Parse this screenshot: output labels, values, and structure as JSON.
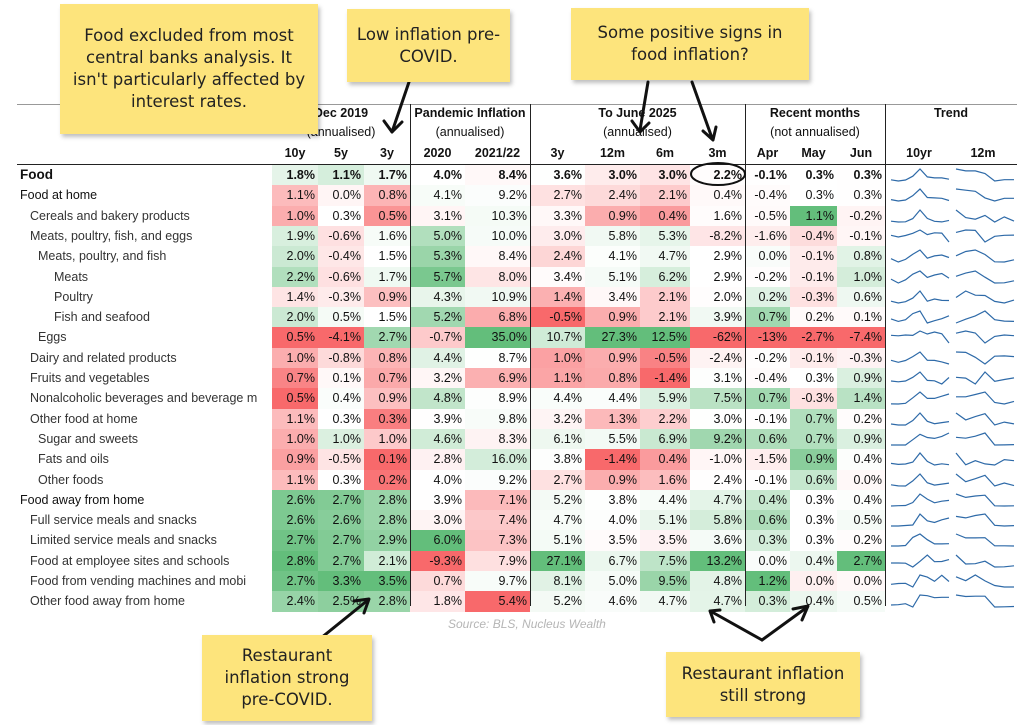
{
  "notes": {
    "food_excluded": "Food excluded from most central banks analysis. It isn't particularly affected by interest rates.",
    "low_inflation": "Low inflation pre-COVID.",
    "positive_signs": "Some positive signs in food inflation?",
    "restaurant_pre": "Restaurant inflation strong pre-COVID.",
    "restaurant_still": "Restaurant inflation still strong"
  },
  "source": "Source: BLS, Nucleus Wealth",
  "colors": {
    "red": "#f8696b",
    "white": "#ffffff",
    "green": "#63be7b",
    "note": "#fde47c",
    "sparkline": "#2e6aa8"
  },
  "chart_data": {
    "type": "table",
    "groups": [
      {
        "label": "Dec 2019",
        "sublabel": "(annualised)",
        "columns": [
          "10y",
          "5y",
          "3y"
        ]
      },
      {
        "label": "Pandemic Inflation",
        "sublabel": "(annualised)",
        "columns": [
          "2020",
          "2021/22"
        ]
      },
      {
        "label": "To June 2025",
        "sublabel": "(annualised)",
        "columns": [
          "3y",
          "12m",
          "6m",
          "3m"
        ]
      },
      {
        "label": "Recent months",
        "sublabel": "(not annualised)",
        "columns": [
          "Apr",
          "May",
          "Jun"
        ]
      },
      {
        "label": "Trend",
        "sublabel": "",
        "columns": [
          "10yr",
          "12m"
        ]
      }
    ],
    "rows": [
      {
        "label": "Food",
        "level": 0,
        "bold": true,
        "values": [
          1.8,
          1.1,
          1.7,
          4.0,
          8.4,
          3.6,
          3.0,
          3.0,
          2.2,
          -0.1,
          0.3,
          0.3
        ]
      },
      {
        "label": "Food at home",
        "level": 0,
        "values": [
          1.1,
          0.0,
          0.8,
          4.1,
          9.2,
          2.7,
          2.4,
          2.1,
          0.4,
          -0.4,
          0.3,
          0.3
        ]
      },
      {
        "label": "Cereals and bakery products",
        "level": 1,
        "values": [
          1.0,
          0.3,
          0.5,
          3.1,
          10.3,
          3.3,
          0.9,
          0.4,
          1.6,
          -0.5,
          1.1,
          -0.2
        ]
      },
      {
        "label": "Meats, poultry, fish, and eggs",
        "level": 1,
        "values": [
          1.9,
          -0.6,
          1.6,
          5.0,
          10.0,
          3.0,
          5.8,
          5.3,
          -8.2,
          -1.6,
          -0.4,
          -0.1
        ]
      },
      {
        "label": "Meats, poultry, and fish",
        "level": 2,
        "values": [
          2.0,
          -0.4,
          1.5,
          5.3,
          8.4,
          2.4,
          4.1,
          4.7,
          2.9,
          0.0,
          -0.1,
          0.8
        ]
      },
      {
        "label": "Meats",
        "level": 3,
        "values": [
          2.2,
          -0.6,
          1.7,
          5.7,
          8.0,
          3.4,
          5.1,
          6.2,
          2.9,
          -0.2,
          -0.1,
          1.0
        ]
      },
      {
        "label": "Poultry",
        "level": 3,
        "values": [
          1.4,
          -0.3,
          0.9,
          4.3,
          10.9,
          1.4,
          3.4,
          2.1,
          2.0,
          0.2,
          -0.3,
          0.6
        ]
      },
      {
        "label": "Fish and seafood",
        "level": 3,
        "values": [
          2.0,
          0.5,
          1.5,
          5.2,
          6.8,
          -0.5,
          0.9,
          2.1,
          3.9,
          0.7,
          0.2,
          0.1
        ]
      },
      {
        "label": "Eggs",
        "level": 2,
        "values": [
          0.5,
          -4.1,
          2.7,
          -0.7,
          35.0,
          10.7,
          27.3,
          12.5,
          -62,
          -13,
          -2.7,
          -7.4
        ],
        "text": [
          null,
          null,
          null,
          null,
          null,
          null,
          null,
          null,
          "-62%",
          "-13%",
          null,
          null
        ]
      },
      {
        "label": "Dairy and related products",
        "level": 1,
        "values": [
          1.0,
          -0.8,
          0.8,
          4.4,
          8.7,
          1.0,
          0.9,
          -0.5,
          -2.4,
          -0.2,
          -0.1,
          -0.3
        ]
      },
      {
        "label": "Fruits and vegetables",
        "level": 1,
        "values": [
          0.7,
          0.1,
          0.7,
          3.2,
          6.9,
          1.1,
          0.8,
          -1.4,
          3.1,
          -0.4,
          0.3,
          0.9
        ]
      },
      {
        "label": "Nonalcoholic beverages and beverage m",
        "level": 1,
        "values": [
          0.5,
          0.4,
          0.9,
          4.8,
          8.9,
          4.4,
          4.4,
          5.9,
          7.5,
          0.7,
          -0.3,
          1.4
        ]
      },
      {
        "label": "Other food at home",
        "level": 1,
        "values": [
          1.1,
          0.3,
          0.3,
          3.9,
          9.8,
          3.2,
          1.3,
          2.2,
          3.0,
          -0.1,
          0.7,
          0.2
        ]
      },
      {
        "label": "Sugar and sweets",
        "level": 2,
        "values": [
          1.0,
          1.0,
          1.0,
          4.6,
          8.3,
          6.1,
          5.5,
          6.9,
          9.2,
          0.6,
          0.7,
          0.9
        ]
      },
      {
        "label": "Fats and oils",
        "level": 2,
        "values": [
          0.9,
          -0.5,
          0.1,
          2.8,
          16.0,
          3.8,
          -1.4,
          0.4,
          -1.0,
          -1.5,
          0.9,
          0.4
        ]
      },
      {
        "label": "Other foods",
        "level": 2,
        "values": [
          1.1,
          0.3,
          0.2,
          4.0,
          9.2,
          2.7,
          0.9,
          1.6,
          2.4,
          -0.1,
          0.6,
          0.0
        ]
      },
      {
        "label": "Food away from home",
        "level": 0,
        "values": [
          2.6,
          2.7,
          2.8,
          3.9,
          7.1,
          5.2,
          3.8,
          4.4,
          4.7,
          0.4,
          0.3,
          0.4
        ]
      },
      {
        "label": "Full service meals and snacks",
        "level": 1,
        "values": [
          2.6,
          2.6,
          2.8,
          3.0,
          7.4,
          4.7,
          4.0,
          5.1,
          5.8,
          0.6,
          0.3,
          0.5
        ]
      },
      {
        "label": "Limited service meals and snacks",
        "level": 1,
        "values": [
          2.7,
          2.7,
          2.9,
          6.0,
          7.3,
          5.1,
          3.5,
          3.5,
          3.6,
          0.3,
          0.3,
          0.2
        ]
      },
      {
        "label": "Food at employee sites and schools",
        "level": 1,
        "values": [
          2.8,
          2.7,
          2.1,
          -9.3,
          7.9,
          27.1,
          6.7,
          7.5,
          13.2,
          0.0,
          0.4,
          2.7
        ]
      },
      {
        "label": "Food from vending machines and mobi",
        "level": 1,
        "values": [
          2.7,
          3.3,
          3.5,
          0.7,
          9.7,
          8.1,
          5.0,
          9.5,
          4.8,
          1.2,
          0.0,
          0.0
        ]
      },
      {
        "label": "Other food away from home",
        "level": 1,
        "values": [
          2.4,
          2.5,
          2.8,
          1.8,
          5.4,
          5.2,
          4.6,
          4.7,
          4.7,
          0.3,
          0.4,
          0.5
        ]
      }
    ]
  }
}
